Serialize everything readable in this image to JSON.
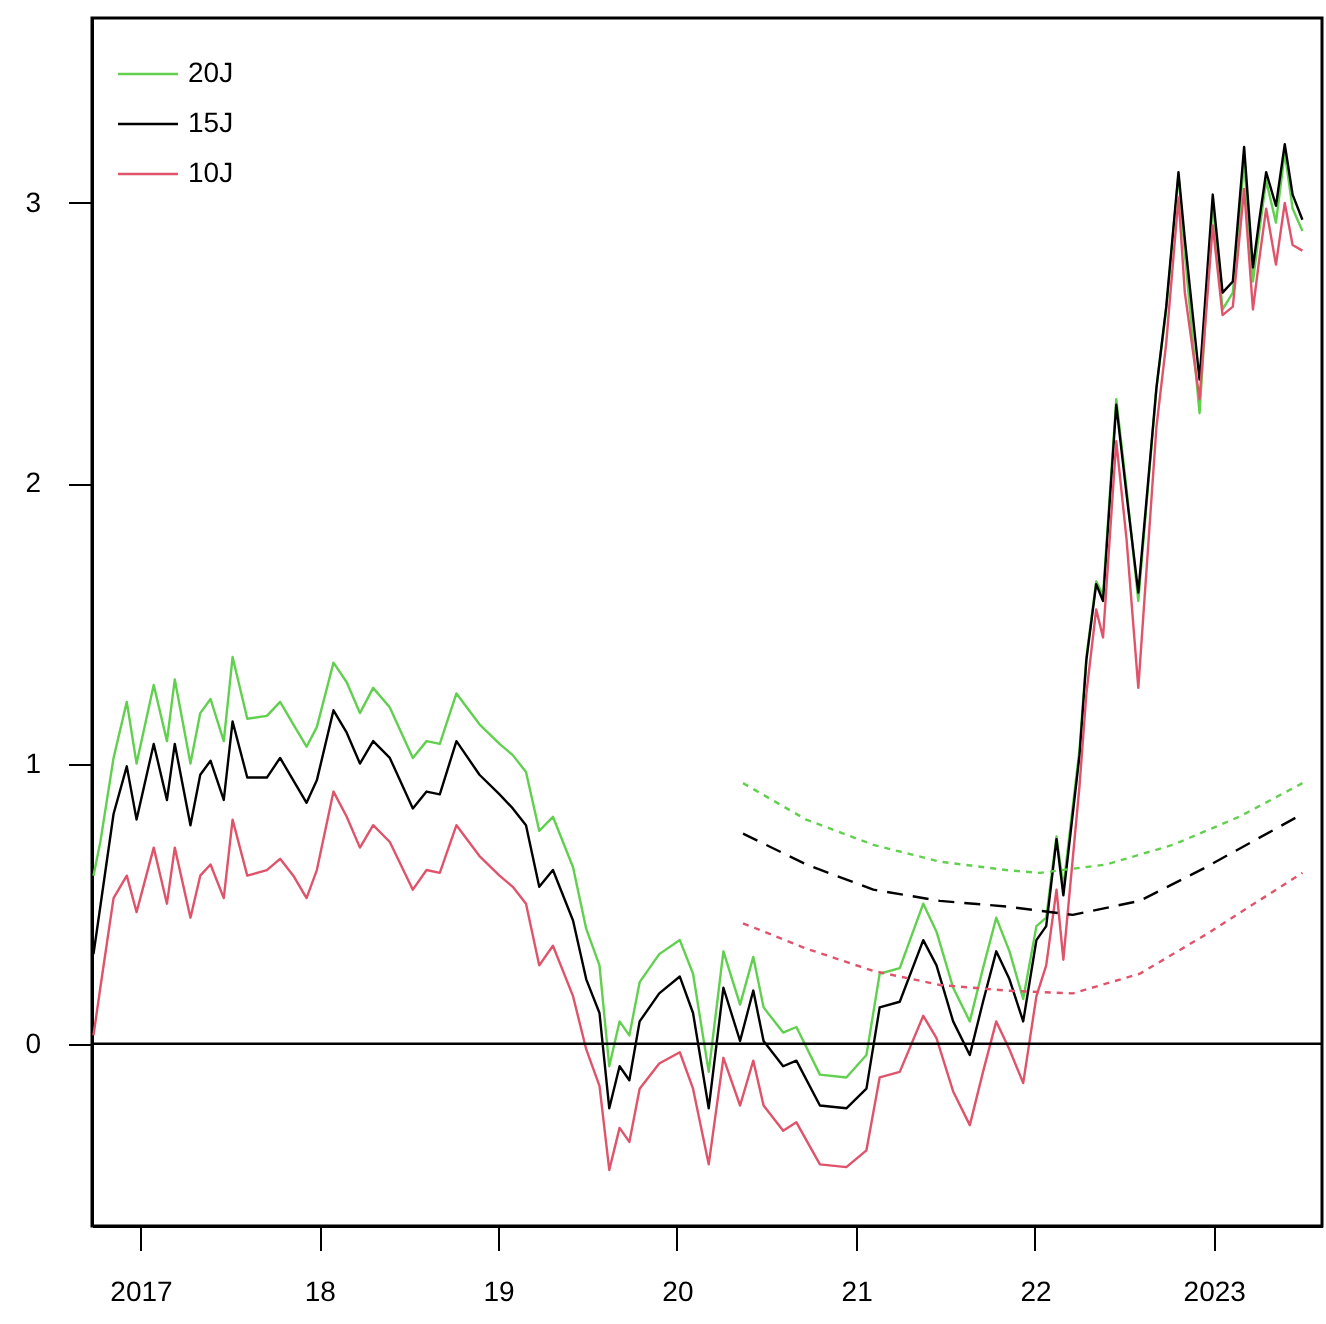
{
  "chart_data": {
    "type": "line",
    "x": [
      "2016-09-27",
      "2016-10-11",
      "2016-11-07",
      "2016-12-04",
      "2016-12-24",
      "2017-01-28",
      "2017-02-24",
      "2017-03-12",
      "2017-04-13",
      "2017-05-03",
      "2017-05-24",
      "2017-06-20",
      "2017-07-08",
      "2017-08-07",
      "2017-09-16",
      "2017-10-13",
      "2017-11-09",
      "2017-12-06",
      "2017-12-27",
      "2018-01-30",
      "2018-02-26",
      "2018-03-25",
      "2018-04-21",
      "2018-05-25",
      "2018-07-11",
      "2018-08-08",
      "2018-09-04",
      "2018-10-08",
      "2018-11-24",
      "2019-01-04",
      "2019-01-31",
      "2019-02-27",
      "2019-03-26",
      "2019-04-23",
      "2019-06-03",
      "2019-06-30",
      "2019-07-27",
      "2019-08-16",
      "2019-09-06",
      "2019-09-26",
      "2019-10-17",
      "2019-11-26",
      "2020-01-07",
      "2020-02-03",
      "2020-03-06",
      "2020-04-05",
      "2020-05-09",
      "2020-06-05",
      "2020-06-26",
      "2020-08-05",
      "2020-09-01",
      "2020-10-19",
      "2020-12-12",
      "2021-01-22",
      "2021-02-18",
      "2021-03-31",
      "2021-05-18",
      "2021-06-14",
      "2021-07-18",
      "2021-08-21",
      "2021-09-17",
      "2021-10-14",
      "2021-11-10",
      "2021-12-08",
      "2022-01-04",
      "2022-01-24",
      "2022-02-14",
      "2022-02-28",
      "2022-04-02",
      "2022-04-16",
      "2022-05-06",
      "2022-05-20",
      "2022-06-16",
      "2022-07-07",
      "2022-07-31",
      "2022-09-06",
      "2022-09-26",
      "2022-10-21",
      "2022-11-03",
      "2022-12-03",
      "2022-12-30",
      "2023-01-19",
      "2023-02-09",
      "2023-03-04",
      "2023-03-22",
      "2023-04-04",
      "2023-04-18",
      "2023-05-08",
      "2023-05-26",
      "2023-06-11",
      "2023-07-01"
    ],
    "series": [
      {
        "name": "20J",
        "color": "#61d04f",
        "values": [
          0.6,
          0.72,
          1.02,
          1.22,
          1.0,
          1.28,
          1.08,
          1.3,
          1.0,
          1.18,
          1.23,
          1.08,
          1.38,
          1.16,
          1.17,
          1.22,
          1.14,
          1.06,
          1.13,
          1.36,
          1.29,
          1.18,
          1.27,
          1.2,
          1.02,
          1.08,
          1.07,
          1.25,
          1.14,
          1.07,
          1.03,
          0.97,
          0.76,
          0.81,
          0.63,
          0.41,
          0.28,
          -0.08,
          0.08,
          0.03,
          0.22,
          0.32,
          0.37,
          0.25,
          -0.1,
          0.33,
          0.14,
          0.31,
          0.13,
          0.04,
          0.06,
          -0.11,
          -0.12,
          -0.04,
          0.25,
          0.27,
          0.5,
          0.4,
          0.2,
          0.08,
          0.27,
          0.45,
          0.33,
          0.16,
          0.42,
          0.45,
          0.74,
          0.56,
          1.05,
          1.38,
          1.65,
          1.6,
          2.3,
          1.98,
          1.58,
          2.34,
          2.62,
          3.1,
          2.82,
          2.25,
          3.0,
          2.62,
          2.68,
          3.15,
          2.72,
          2.9,
          3.08,
          2.93,
          3.18,
          2.98,
          2.9
        ]
      },
      {
        "name": "15J",
        "color": "#000000",
        "values": [
          0.32,
          0.49,
          0.82,
          0.99,
          0.8,
          1.07,
          0.87,
          1.07,
          0.78,
          0.96,
          1.01,
          0.87,
          1.15,
          0.95,
          0.95,
          1.02,
          0.94,
          0.86,
          0.94,
          1.19,
          1.11,
          1.0,
          1.08,
          1.02,
          0.84,
          0.9,
          0.89,
          1.08,
          0.96,
          0.89,
          0.84,
          0.78,
          0.56,
          0.62,
          0.44,
          0.23,
          0.11,
          -0.23,
          -0.08,
          -0.13,
          0.08,
          0.18,
          0.24,
          0.11,
          -0.23,
          0.2,
          0.01,
          0.19,
          0.01,
          -0.08,
          -0.06,
          -0.22,
          -0.23,
          -0.16,
          0.13,
          0.15,
          0.37,
          0.28,
          0.08,
          -0.04,
          0.15,
          0.33,
          0.23,
          0.08,
          0.37,
          0.42,
          0.73,
          0.53,
          1.03,
          1.37,
          1.64,
          1.58,
          2.28,
          1.96,
          1.61,
          2.34,
          2.63,
          3.11,
          2.87,
          2.37,
          3.03,
          2.68,
          2.72,
          3.2,
          2.77,
          2.94,
          3.11,
          2.99,
          3.21,
          3.03,
          2.94
        ]
      },
      {
        "name": "10J",
        "color": "#df536b",
        "values": [
          0.03,
          0.2,
          0.52,
          0.6,
          0.47,
          0.7,
          0.5,
          0.7,
          0.45,
          0.6,
          0.64,
          0.52,
          0.8,
          0.6,
          0.62,
          0.66,
          0.6,
          0.52,
          0.62,
          0.9,
          0.81,
          0.7,
          0.78,
          0.72,
          0.55,
          0.62,
          0.61,
          0.78,
          0.67,
          0.6,
          0.56,
          0.5,
          0.28,
          0.35,
          0.17,
          -0.02,
          -0.15,
          -0.45,
          -0.3,
          -0.35,
          -0.16,
          -0.07,
          -0.03,
          -0.16,
          -0.43,
          -0.05,
          -0.22,
          -0.06,
          -0.22,
          -0.31,
          -0.28,
          -0.43,
          -0.44,
          -0.38,
          -0.12,
          -0.1,
          0.1,
          0.02,
          -0.17,
          -0.29,
          -0.1,
          0.08,
          -0.02,
          -0.14,
          0.17,
          0.28,
          0.55,
          0.3,
          0.92,
          1.25,
          1.55,
          1.45,
          2.15,
          1.8,
          1.27,
          2.2,
          2.5,
          3.02,
          2.68,
          2.3,
          2.92,
          2.6,
          2.63,
          3.05,
          2.62,
          2.8,
          2.98,
          2.78,
          3.0,
          2.85,
          2.83
        ]
      },
      {
        "color": "#61d04f",
        "line_style": "dotted",
        "x": [
          "2020-05-15",
          "2020-09-21",
          "2021-02-05",
          "2021-06-21",
          "2021-11-03",
          "2022-01-11",
          "2022-05-27",
          "2022-10-10",
          "2023-02-22",
          "2023-07-01"
        ],
        "values": [
          0.93,
          0.8,
          0.71,
          0.65,
          0.62,
          0.61,
          0.64,
          0.71,
          0.81,
          0.93
        ]
      },
      {
        "color": "#000000",
        "line_style": "dashed",
        "x": [
          "2020-05-15",
          "2020-09-21",
          "2021-02-05",
          "2021-06-21",
          "2021-11-03",
          "2022-03-19",
          "2022-08-03",
          "2022-12-16",
          "2023-07-01"
        ],
        "values": [
          0.75,
          0.64,
          0.55,
          0.51,
          0.49,
          0.46,
          0.51,
          0.63,
          0.82
        ]
      },
      {
        "color": "#df536b",
        "line_style": "dotted",
        "x": [
          "2020-05-15",
          "2020-09-21",
          "2021-02-05",
          "2021-06-21",
          "2021-11-03",
          "2022-03-19",
          "2022-08-03",
          "2022-12-16",
          "2023-07-01"
        ],
        "values": [
          0.43,
          0.34,
          0.26,
          0.21,
          0.19,
          0.18,
          0.25,
          0.39,
          0.61
        ]
      }
    ],
    "xlim": [
      "2016-09-24",
      "2023-08-10"
    ],
    "xticks": [
      {
        "value": "2017-01-01",
        "label": "2017"
      },
      {
        "value": "2018-01-01",
        "label": "18"
      },
      {
        "value": "2019-01-01",
        "label": "19"
      },
      {
        "value": "2020-01-01",
        "label": "20"
      },
      {
        "value": "2021-01-01",
        "label": "21"
      },
      {
        "value": "2022-01-01",
        "label": "22"
      },
      {
        "value": "2023-01-01",
        "label": "2023"
      }
    ],
    "ylim": [
      -0.65,
      3.66
    ],
    "yticks": [
      0,
      1,
      2,
      3
    ],
    "ref_lines": [
      {
        "axis": "y",
        "value": 0,
        "color": "#000000"
      }
    ],
    "legend": "top left",
    "grid": false
  }
}
